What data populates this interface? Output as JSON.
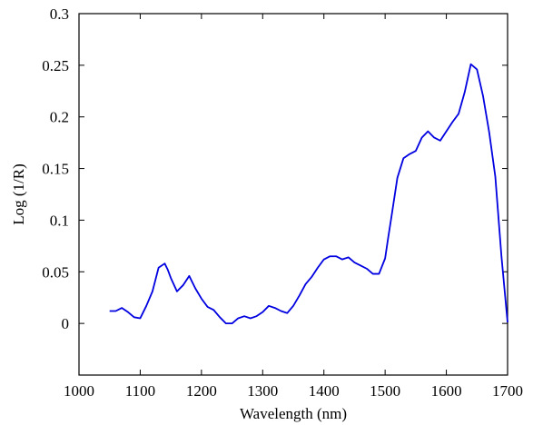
{
  "chart_data": {
    "type": "line",
    "title": "",
    "xlabel": "Wavelength (nm)",
    "ylabel": "Log (1/R)",
    "xlim": [
      1000,
      1700
    ],
    "ylim": [
      -0.05,
      0.3
    ],
    "xticks": [
      1000,
      1100,
      1200,
      1300,
      1400,
      1500,
      1600,
      1700
    ],
    "xtick_labels": [
      "1000",
      "1100",
      "1200",
      "1300",
      "1400",
      "1500",
      "1600",
      "1700"
    ],
    "yticks": [
      0,
      0.05,
      0.1,
      0.15,
      0.2,
      0.25,
      0.3
    ],
    "ytick_labels": [
      "0",
      "0.05",
      "0.1",
      "0.15",
      "0.2",
      "0.25",
      "0.3"
    ],
    "grid": false,
    "series": [
      {
        "color": "#0000e0",
        "x": [
          1050,
          1060,
          1070,
          1080,
          1090,
          1100,
          1110,
          1120,
          1130,
          1140,
          1145,
          1150,
          1160,
          1170,
          1180,
          1190,
          1200,
          1210,
          1220,
          1230,
          1240,
          1250,
          1260,
          1270,
          1280,
          1290,
          1300,
          1310,
          1320,
          1330,
          1340,
          1350,
          1360,
          1370,
          1380,
          1390,
          1400,
          1410,
          1420,
          1430,
          1440,
          1450,
          1460,
          1470,
          1480,
          1490,
          1500,
          1505,
          1510,
          1520,
          1530,
          1540,
          1550,
          1560,
          1570,
          1580,
          1590,
          1600,
          1610,
          1620,
          1630,
          1640,
          1650,
          1660,
          1670,
          1680,
          1690,
          1700
        ],
        "y": [
          0.012,
          0.012,
          0.015,
          0.011,
          0.006,
          0.005,
          0.017,
          0.031,
          0.054,
          0.058,
          0.052,
          0.044,
          0.031,
          0.037,
          0.046,
          0.034,
          0.024,
          0.016,
          0.013,
          0.006,
          0.0,
          0.0,
          0.005,
          0.007,
          0.005,
          0.007,
          0.011,
          0.017,
          0.015,
          0.012,
          0.01,
          0.017,
          0.027,
          0.038,
          0.045,
          0.054,
          0.062,
          0.065,
          0.065,
          0.062,
          0.064,
          0.059,
          0.056,
          0.053,
          0.048,
          0.048,
          0.063,
          0.083,
          0.102,
          0.141,
          0.16,
          0.164,
          0.167,
          0.18,
          0.186,
          0.18,
          0.177,
          0.186,
          0.195,
          0.203,
          0.224,
          0.251,
          0.246,
          0.22,
          0.185,
          0.142,
          0.065,
          0.001
        ]
      }
    ]
  }
}
